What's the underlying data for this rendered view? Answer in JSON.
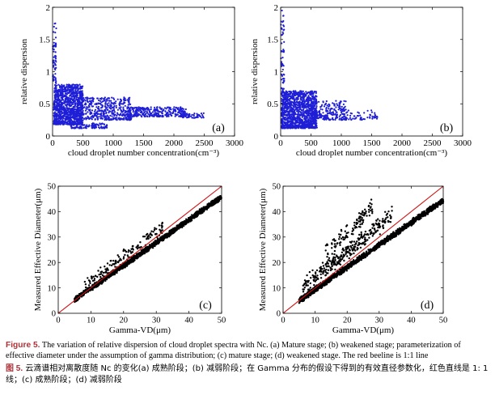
{
  "caption": {
    "en_label": "Figure 5.",
    "en_text": "The variation of relative dispersion of cloud droplet spectra with Nc. (a) Mature stage; (b) weakened stage; parameterization of effective diameter under the assumption of gamma distribution; (c) mature stage; (d) weakened stage. The red beeline is 1:1 line",
    "zh_label": "图 5.",
    "zh_text": "云滴谱相对离散度随 Nc 的变化(a) 成熟阶段；(b) 减弱阶段；在 Gamma 分布的假设下得到的有效直径参数化，红色直线是 1: 1 线；(c) 成熟阶段；(d) 减弱阶段"
  },
  "colors": {
    "blue": "#1f1fd6",
    "black": "#000000",
    "red": "#d01010",
    "caption_label": "#b03036"
  },
  "chart_data": [
    {
      "id": "a",
      "type": "scatter",
      "panel_label": "(a)",
      "xlabel": "cloud droplet number concentration(cm⁻³)",
      "ylabel": "relative dispersion",
      "xlim": [
        0,
        3000
      ],
      "ylim": [
        0,
        2
      ],
      "xticks": [
        "0",
        "500",
        "1000",
        "1500",
        "2000",
        "2500",
        "3000"
      ],
      "yticks": [
        "0",
        "0.5",
        "1",
        "1.5",
        "2"
      ],
      "series": [
        {
          "name": "mature stage",
          "color": "#1f1fd6",
          "clusters": [
            {
              "x": [
                20,
                500
              ],
              "y": [
                0.18,
                0.8
              ],
              "n": 1100
            },
            {
              "x": [
                400,
                1300
              ],
              "y": [
                0.25,
                0.6
              ],
              "n": 450
            },
            {
              "x": [
                1200,
                2200
              ],
              "y": [
                0.3,
                0.45
              ],
              "n": 320
            },
            {
              "x": [
                2100,
                2500
              ],
              "y": [
                0.28,
                0.36
              ],
              "n": 60
            },
            {
              "x": [
                300,
                900
              ],
              "y": [
                0.12,
                0.2
              ],
              "n": 120
            },
            {
              "x": [
                5,
                60
              ],
              "y": [
                0.8,
                1.75
              ],
              "n": 60
            }
          ]
        }
      ]
    },
    {
      "id": "b",
      "type": "scatter",
      "panel_label": "(b)",
      "xlabel": "cloud droplet number concentration(cm⁻³)",
      "ylabel": "relative dispersion",
      "xlim": [
        0,
        3000
      ],
      "ylim": [
        0,
        2
      ],
      "xticks": [
        "0",
        "500",
        "1000",
        "1500",
        "2000",
        "2500",
        "3000"
      ],
      "yticks": [
        "0",
        "0.5",
        "1",
        "1.5",
        "2"
      ],
      "series": [
        {
          "name": "weakened stage",
          "color": "#1f1fd6",
          "clusters": [
            {
              "x": [
                10,
                600
              ],
              "y": [
                0.12,
                0.7
              ],
              "n": 1200
            },
            {
              "x": [
                500,
                1100
              ],
              "y": [
                0.25,
                0.55
              ],
              "n": 220
            },
            {
              "x": [
                1000,
                1600
              ],
              "y": [
                0.25,
                0.4
              ],
              "n": 60
            },
            {
              "x": [
                5,
                60
              ],
              "y": [
                0.7,
                1.95
              ],
              "n": 60
            }
          ]
        }
      ]
    },
    {
      "id": "c",
      "type": "scatter",
      "panel_label": "(c)",
      "xlabel": "Gamma-VD(μm)",
      "ylabel": "Measured Effective Diameter(μm)",
      "xlim": [
        0,
        50
      ],
      "ylim": [
        0,
        50
      ],
      "xticks": [
        "0",
        "10",
        "20",
        "30",
        "40",
        "50"
      ],
      "yticks": [
        "0",
        "10",
        "20",
        "30",
        "40",
        "50"
      ],
      "reference_line": {
        "label": "1:1",
        "x": [
          0,
          50
        ],
        "y": [
          0,
          50
        ],
        "color": "#d01010"
      },
      "series": [
        {
          "name": "mature stage",
          "color": "#000000",
          "bands": [
            {
              "x": [
                5,
                50
              ],
              "slope": 0.9,
              "intercept": 0.8,
              "spread": 1.2,
              "n": 1600
            },
            {
              "x": [
                8,
                32
              ],
              "slope": 0.95,
              "intercept": 3.5,
              "spread": 2.8,
              "n": 140
            }
          ]
        }
      ]
    },
    {
      "id": "d",
      "type": "scatter",
      "panel_label": "(d)",
      "xlabel": "Gamma-VD(μm)",
      "ylabel": "Measured Effective Diameter(μm)",
      "xlim": [
        0,
        50
      ],
      "ylim": [
        0,
        50
      ],
      "xticks": [
        "0",
        "10",
        "20",
        "30",
        "40",
        "50"
      ],
      "yticks": [
        "0",
        "10",
        "20",
        "30",
        "40",
        "50"
      ],
      "reference_line": {
        "label": "1:1",
        "x": [
          0,
          50
        ],
        "y": [
          0,
          50
        ],
        "color": "#d01010"
      },
      "series": [
        {
          "name": "weakened stage",
          "color": "#000000",
          "bands": [
            {
              "x": [
                5,
                50
              ],
              "slope": 0.88,
              "intercept": 0.5,
              "spread": 1.3,
              "n": 1500
            },
            {
              "x": [
                6,
                34
              ],
              "slope": 1.0,
              "intercept": 4.5,
              "spread": 3.8,
              "n": 300
            },
            {
              "x": [
                13,
                28
              ],
              "slope": 1.28,
              "intercept": 6,
              "spread": 4.2,
              "n": 110
            }
          ]
        }
      ]
    }
  ]
}
